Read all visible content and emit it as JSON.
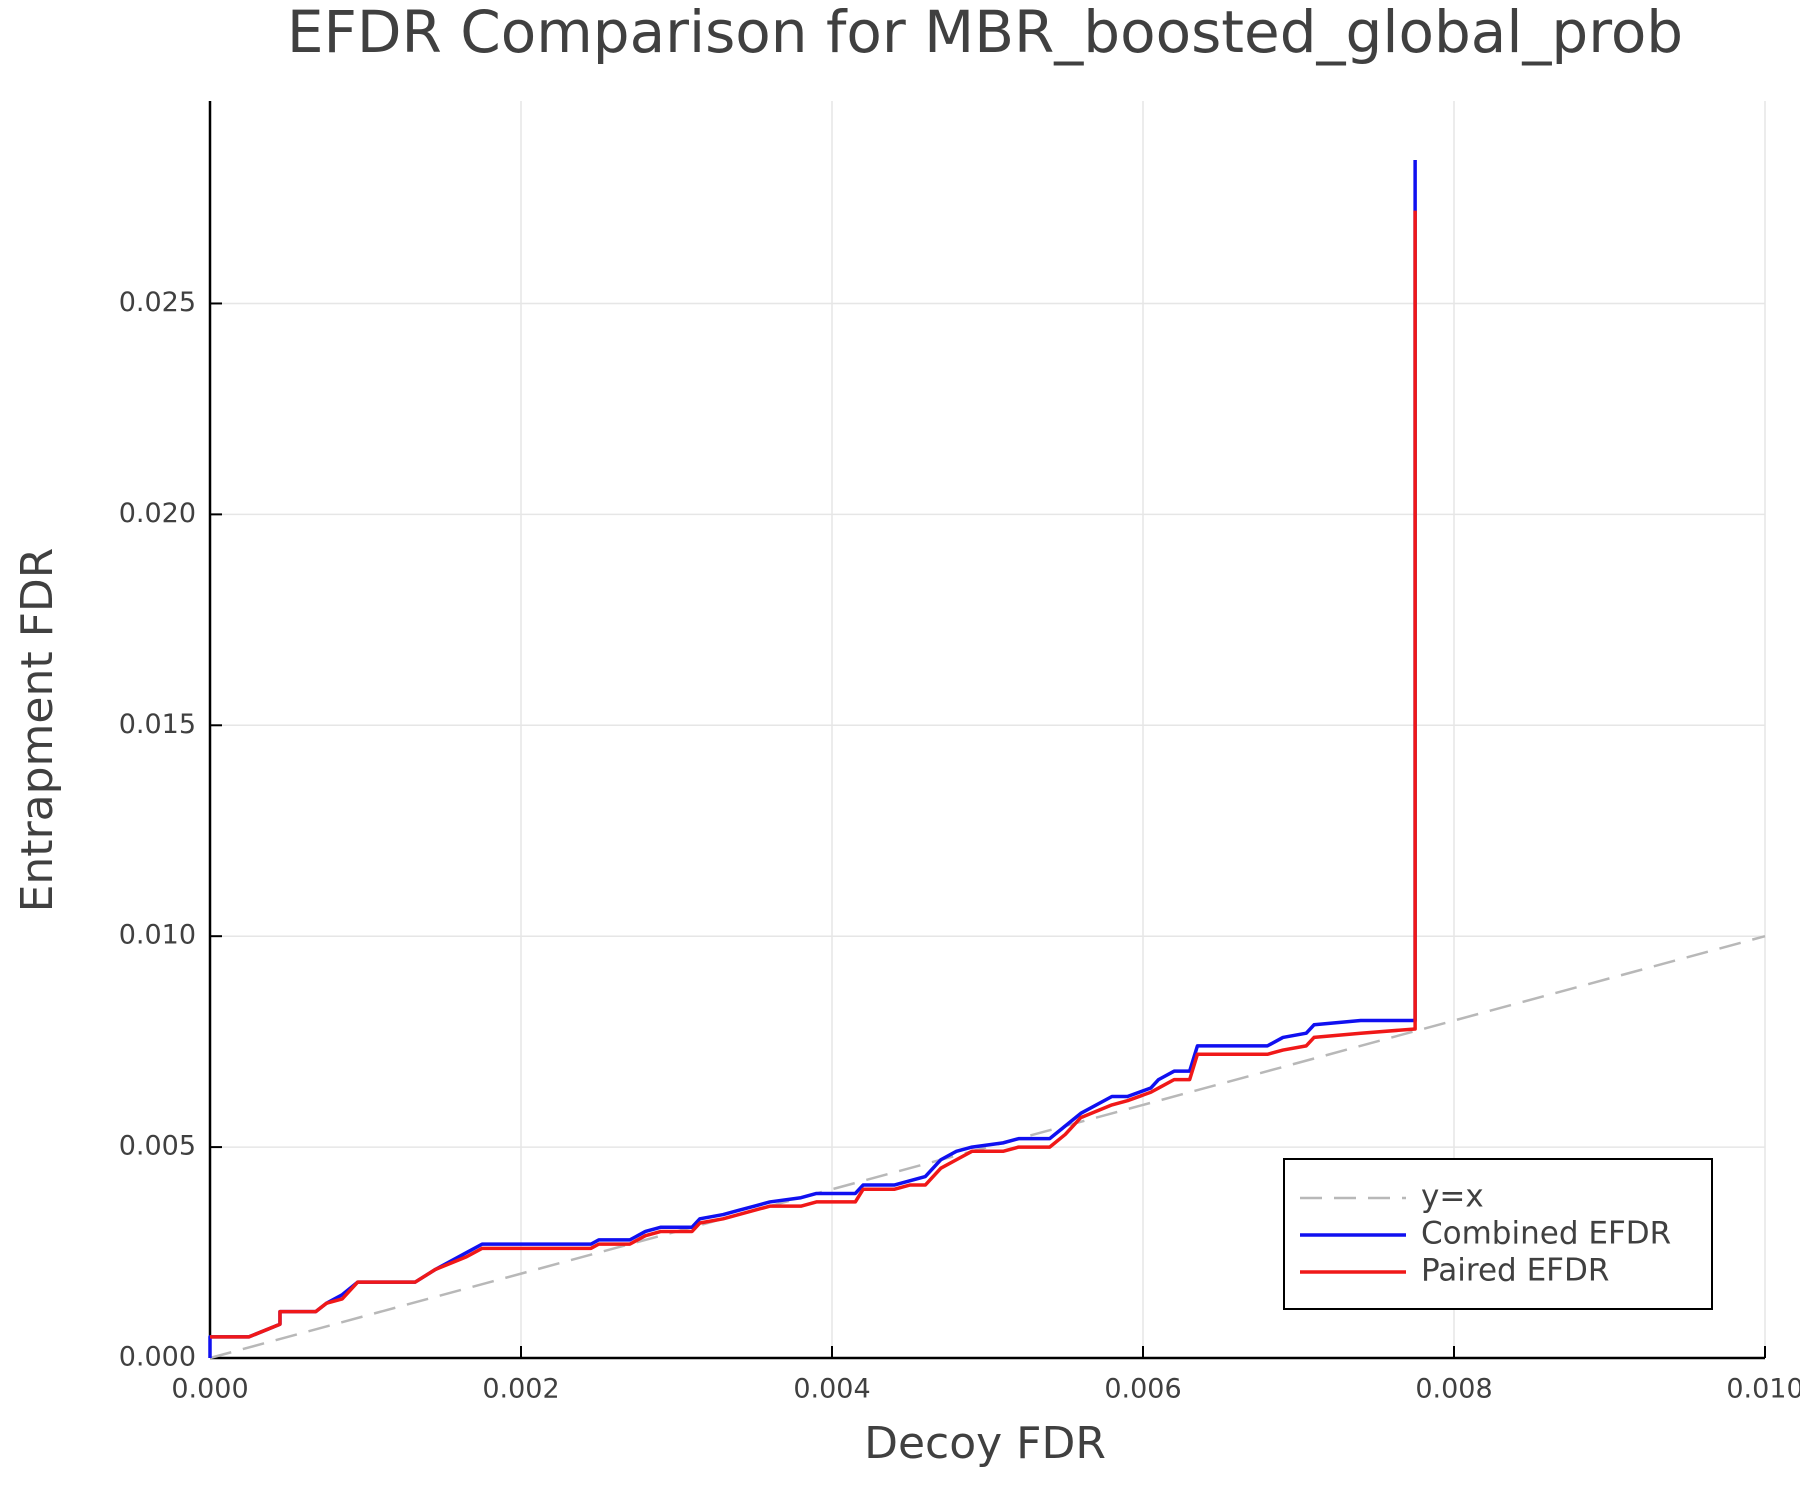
{
  "chart_data": {
    "type": "line",
    "title": "EFDR Comparison for MBR_boosted_global_prob",
    "x_label": "Decoy FDR",
    "y_label": "Entrapment FDR",
    "xlim": [
      0,
      0.01
    ],
    "ylim": [
      0,
      0.0298
    ],
    "xticks": [
      {
        "value": 0,
        "label": "0.000"
      },
      {
        "value": 0.002,
        "label": "0.002"
      },
      {
        "value": 0.004,
        "label": "0.004"
      },
      {
        "value": 0.006,
        "label": "0.006"
      },
      {
        "value": 0.008,
        "label": "0.008"
      },
      {
        "value": 0.01,
        "label": "0.010"
      }
    ],
    "yticks": [
      {
        "value": 0,
        "label": "0.000"
      },
      {
        "value": 0.005,
        "label": "0.005"
      },
      {
        "value": 0.01,
        "label": "0.010"
      },
      {
        "value": 0.015,
        "label": "0.015"
      },
      {
        "value": 0.02,
        "label": "0.020"
      },
      {
        "value": 0.025,
        "label": "0.025"
      }
    ],
    "grid": true,
    "legend": "lower right",
    "series": [
      {
        "name": "y=x",
        "color": "#b8b8b8",
        "line_style": "dashed",
        "x": [
          0,
          0.01
        ],
        "values": [
          0,
          0.01
        ]
      },
      {
        "name": "Combined EFDR",
        "color": "#1010f0",
        "line_style": "solid",
        "x": [
          0,
          0,
          0.00025,
          0.00045,
          0.00045,
          0.00068,
          0.00075,
          0.00085,
          0.00095,
          0.00132,
          0.00145,
          0.00165,
          0.00175,
          0.00245,
          0.0025,
          0.0027,
          0.0028,
          0.0029,
          0.0031,
          0.00315,
          0.0033,
          0.0034,
          0.0035,
          0.0036,
          0.0038,
          0.0039,
          0.00415,
          0.0042,
          0.0044,
          0.0045,
          0.0046,
          0.0047,
          0.0048,
          0.0049,
          0.0051,
          0.0052,
          0.0054,
          0.0055,
          0.0056,
          0.0058,
          0.0059,
          0.00605,
          0.0061,
          0.0062,
          0.0063,
          0.00635,
          0.0068,
          0.0069,
          0.00705,
          0.0071,
          0.0074,
          0.00775,
          0.00775
        ],
        "values": [
          0,
          0.0005,
          0.0005,
          0.0008,
          0.0011,
          0.0011,
          0.0013,
          0.0015,
          0.0018,
          0.0018,
          0.0021,
          0.0025,
          0.0027,
          0.0027,
          0.0028,
          0.0028,
          0.003,
          0.0031,
          0.0031,
          0.0033,
          0.0034,
          0.0035,
          0.0036,
          0.0037,
          0.0038,
          0.0039,
          0.0039,
          0.0041,
          0.0041,
          0.0042,
          0.0043,
          0.0047,
          0.0049,
          0.005,
          0.0051,
          0.0052,
          0.0052,
          0.0055,
          0.0058,
          0.0062,
          0.0062,
          0.0064,
          0.0066,
          0.0068,
          0.0068,
          0.0074,
          0.0074,
          0.0076,
          0.0077,
          0.0079,
          0.008,
          0.008,
          0.0284
        ]
      },
      {
        "name": "Paired EFDR",
        "color": "#f01818",
        "line_style": "solid",
        "x": [
          0,
          0.00025,
          0.00045,
          0.00045,
          0.00068,
          0.00075,
          0.00085,
          0.00095,
          0.00132,
          0.00145,
          0.00165,
          0.00175,
          0.00245,
          0.0025,
          0.0027,
          0.0028,
          0.0029,
          0.0031,
          0.00315,
          0.0033,
          0.0034,
          0.0035,
          0.0036,
          0.0038,
          0.0039,
          0.00415,
          0.0042,
          0.0044,
          0.0045,
          0.0046,
          0.0047,
          0.0048,
          0.0049,
          0.0051,
          0.0052,
          0.0054,
          0.0055,
          0.0056,
          0.0058,
          0.0059,
          0.00605,
          0.0061,
          0.0062,
          0.0063,
          0.00635,
          0.0068,
          0.0069,
          0.00705,
          0.0071,
          0.0074,
          0.00775,
          0.00775
        ],
        "values": [
          0.0005,
          0.0005,
          0.0008,
          0.0011,
          0.0011,
          0.0013,
          0.0014,
          0.0018,
          0.0018,
          0.0021,
          0.0024,
          0.0026,
          0.0026,
          0.0027,
          0.0027,
          0.0029,
          0.003,
          0.003,
          0.0032,
          0.0033,
          0.0034,
          0.0035,
          0.0036,
          0.0036,
          0.0037,
          0.0037,
          0.004,
          0.004,
          0.0041,
          0.0041,
          0.0045,
          0.0047,
          0.0049,
          0.0049,
          0.005,
          0.005,
          0.0053,
          0.0057,
          0.006,
          0.0061,
          0.0063,
          0.0064,
          0.0066,
          0.0066,
          0.0072,
          0.0072,
          0.0073,
          0.0074,
          0.0076,
          0.0077,
          0.0078,
          0.0272
        ]
      }
    ]
  }
}
